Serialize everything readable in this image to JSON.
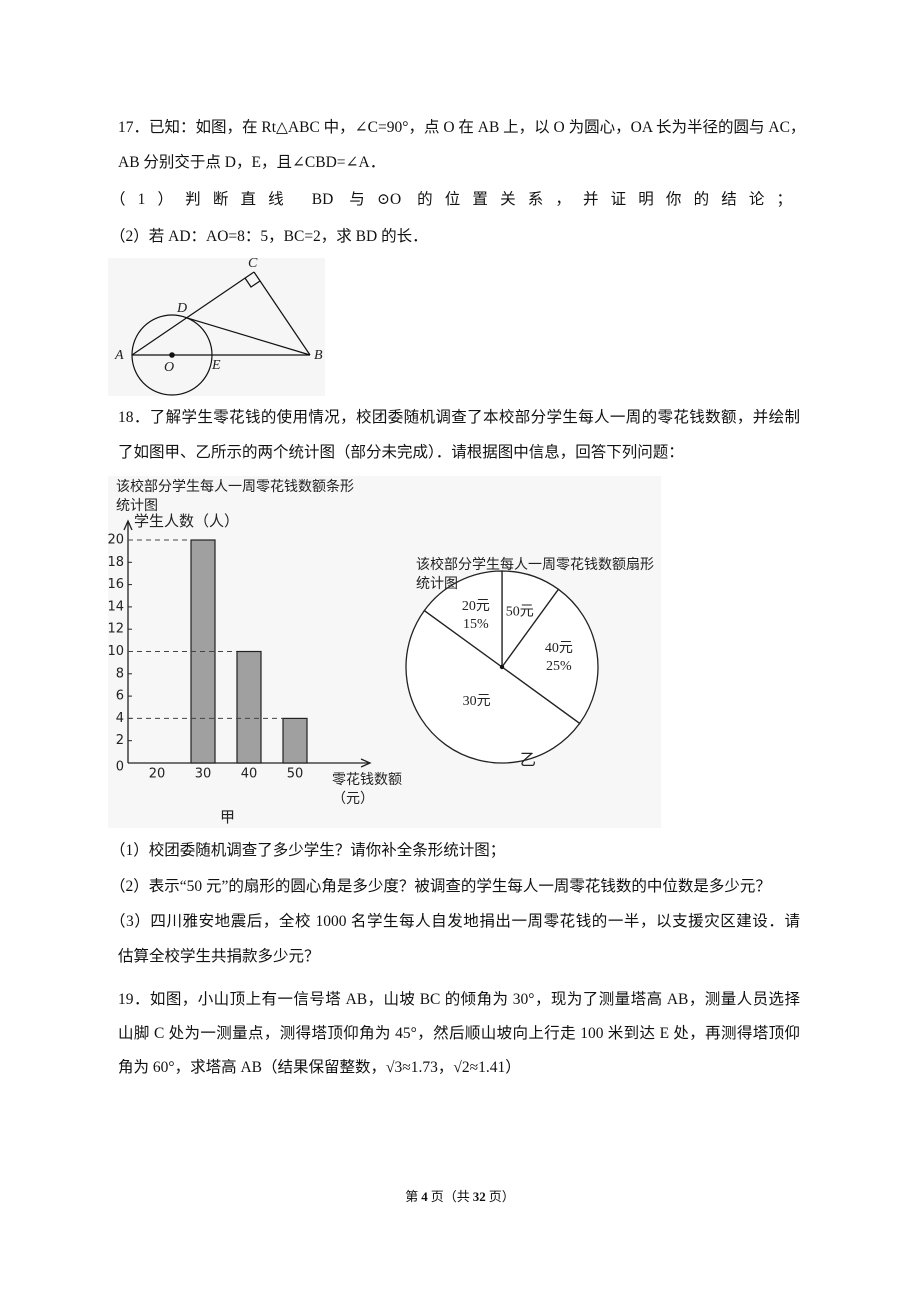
{
  "problems": [
    {
      "lines": [
        "17．已知：如图，在 Rt△ABC 中，∠C=90°，点 O 在 AB 上，以 O 为圆心，OA 长为半径的圆与 AC，",
        "AB 分别交于点 D，E，且∠CBD=∠A．"
      ],
      "questions": [
        "（1）判断直线 BD 与⊙O 的位置关系，并证明你的结论；",
        "（2）若 AD：AO=8：5，BC=2，求 BD 的长．"
      ],
      "figure_labels": [
        "C",
        "D",
        "A",
        "O",
        "E",
        "B"
      ]
    },
    {
      "lines": [
        "18．了解学生零花钱的使用情况，校团委随机调查了本校部分学生每人一周的零花钱数额，并绘制",
        "了如图甲、乙所示的两个统计图（部分未完成）．请根据图中信息，回答下列问题："
      ],
      "questions": [
        "（1）校团委随机调查了多少学生？请你补全条形统计图；",
        "（2）表示“50 元”的扇形的圆心角是多少度？被调查的学生每人一周零花钱数的中位数是多少元？",
        "（3）四川雅安地震后，全校 1000 名学生每人自发地捐出一周零花钱的一半，以支援灾区建设．请",
        "估算全校学生共捐款多少元？"
      ]
    },
    {
      "lines": [
        "19．如图，小山顶上有一信号塔 AB，山坡 BC 的倾角为 30°，现为了测量塔高 AB，测量人员选择",
        "山脚 C 处为一测量点，测得塔顶仰角为 45°，然后顺山坡向上行走 100 米到达 E 处，再测得塔顶仰",
        "角为 60°，求塔高 AB（结果保留整数，√3≈1.73，√2≈1.41）"
      ]
    }
  ],
  "chart_data": [
    {
      "type": "bar",
      "title": "该校部分学生每人一周零花钱数额条形统计图",
      "y_label": "学生人数（人）",
      "x_label": "零花钱数额（元）",
      "caption": "甲",
      "categories": [
        "20",
        "30",
        "40",
        "50"
      ],
      "values": [
        null,
        20,
        10,
        4
      ],
      "color": "#a0a0a0",
      "ylim": [
        0,
        20
      ],
      "yticks": [
        0,
        2,
        4,
        6,
        8,
        10,
        12,
        14,
        16,
        18,
        20
      ],
      "guide_lines": true
    },
    {
      "type": "pie",
      "title": "该校部分学生每人一周零花钱数额扇形统计图",
      "caption": "乙",
      "categories": [
        "50元",
        "40元",
        "30元",
        "20元"
      ],
      "values": [
        10,
        25,
        50,
        15
      ],
      "value_labels": [
        null,
        "25%",
        null,
        "15%"
      ],
      "color": "#ffffff"
    }
  ],
  "footer": [
    "第",
    "4",
    "页（共",
    "32",
    "页）"
  ]
}
